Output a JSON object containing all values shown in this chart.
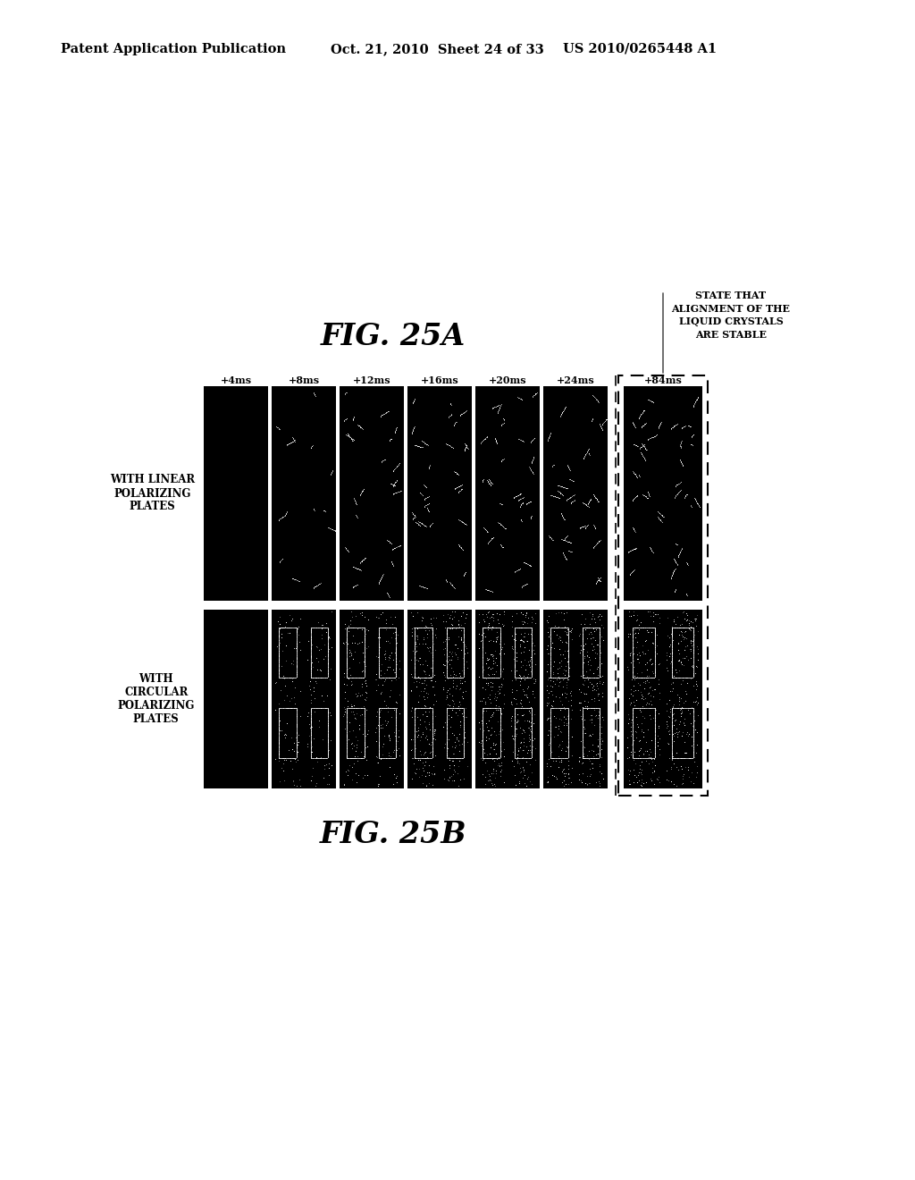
{
  "bg_color": "#ffffff",
  "header_left": "Patent Application Publication",
  "header_mid": "Oct. 21, 2010  Sheet 24 of 33",
  "header_right": "US 2010/0265448 A1",
  "fig_a_title": "FIG. 25A",
  "fig_b_title": "FIG. 25B",
  "state_label": "STATE THAT\nALIGNMENT OF THE\nLIQUID CRYSTALS\nARE STABLE",
  "col_labels": [
    "+4ms",
    "+8ms",
    "+12ms",
    "+16ms",
    "+20ms",
    "+24ms",
    "+84ms"
  ],
  "row_a_label": "WITH LINEAR\nPOLARIZING\nPLATES",
  "row_b_label": "WITH\nCIRCULAR\nPOLARIZING\nPLATES"
}
